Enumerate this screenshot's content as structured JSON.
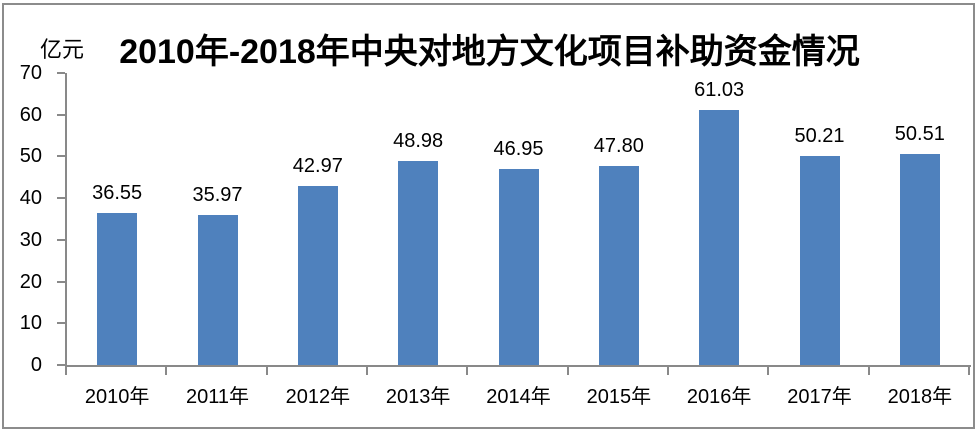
{
  "chart_data": {
    "type": "bar",
    "title": "2010年-2018年中央对地方文化项目补助资金情况",
    "unit_label": "亿元",
    "categories": [
      "2010年",
      "2011年",
      "2012年",
      "2013年",
      "2014年",
      "2015年",
      "2016年",
      "2017年",
      "2018年"
    ],
    "values": [
      36.55,
      35.97,
      42.97,
      48.98,
      46.95,
      47.8,
      61.03,
      50.21,
      50.51
    ],
    "value_labels": [
      "36.55",
      "35.97",
      "42.97",
      "48.98",
      "46.95",
      "47.80",
      "61.03",
      "50.21",
      "50.51"
    ],
    "ylim": [
      0,
      70
    ],
    "ytick_step": 10,
    "yticks": [
      0,
      10,
      20,
      30,
      40,
      50,
      60,
      70
    ],
    "grid": false,
    "legend": false,
    "xlabel": "",
    "ylabel": "亿元",
    "colors": {
      "bar": "#4F81BD",
      "axis": "#898989",
      "frame": "#8C8C8C",
      "text": "#000000",
      "background": "#FFFFFF"
    }
  }
}
